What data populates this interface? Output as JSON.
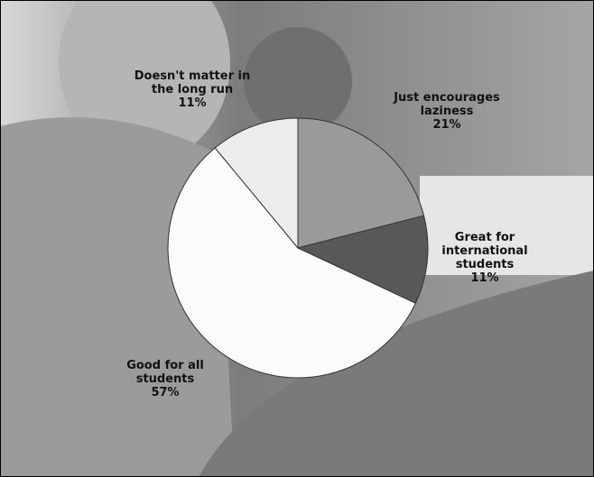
{
  "chart_data": {
    "type": "pie",
    "categories": [
      "Just encourages laziness",
      "Great for international students",
      "Good for all students",
      "Doesn't matter in the long run"
    ],
    "values": [
      21,
      11,
      57,
      11
    ],
    "value_labels": [
      "21%",
      "11%",
      "57%",
      "11%"
    ],
    "colors": [
      "#9a9a9a",
      "#585858",
      "#fbfbfb",
      "#ececec"
    ]
  }
}
